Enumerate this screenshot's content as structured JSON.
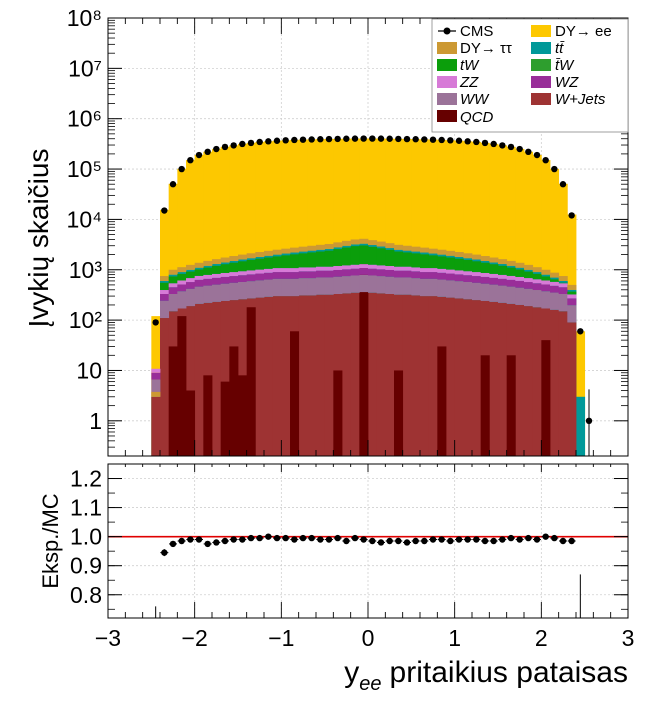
{
  "chart_data": [
    {
      "type": "stacked-histogram",
      "ylabel": "Įvykių skaičius",
      "yscale": "log",
      "ylim": [
        0.2,
        100000000
      ],
      "xlim": [
        -3,
        3
      ],
      "ytick_labels": [
        "1",
        "10",
        "10²",
        "10³",
        "10⁴",
        "10⁵",
        "10⁶",
        "10⁷",
        "10⁸"
      ],
      "legend_position": "top-right",
      "legend": [
        {
          "label": "CMS",
          "color": "#000000",
          "marker": "point"
        },
        {
          "label": "DY→ ee",
          "color": "#fdc800",
          "marker": "box"
        },
        {
          "label": "DY→ ττ",
          "color": "#cc9933",
          "marker": "box"
        },
        {
          "label": "tt̄",
          "color": "#009999",
          "marker": "box"
        },
        {
          "label": "tW",
          "color": "#0b9e0b",
          "marker": "box"
        },
        {
          "label": "t̄W",
          "color": "#2e9e2e",
          "marker": "box"
        },
        {
          "label": "ZZ",
          "color": "#d77ad7",
          "marker": "box"
        },
        {
          "label": "WZ",
          "color": "#992e99",
          "marker": "box"
        },
        {
          "label": "WW",
          "color": "#9b7399",
          "marker": "box"
        },
        {
          "label": "W+Jets",
          "color": "#9e3333",
          "marker": "box"
        },
        {
          "label": "QCD",
          "color": "#660000",
          "marker": "box"
        }
      ],
      "note": "Per-bin stacked MC yields and data points along y_ee (bins of width 0.1 from -2.5 to 2.6)",
      "x": [
        -2.45,
        -2.35,
        -2.25,
        -2.15,
        -2.05,
        -1.95,
        -1.85,
        -1.75,
        -1.65,
        -1.55,
        -1.45,
        -1.35,
        -1.25,
        -1.15,
        -1.05,
        -0.95,
        -0.85,
        -0.75,
        -0.65,
        -0.55,
        -0.45,
        -0.35,
        -0.25,
        -0.15,
        -0.05,
        0.05,
        0.15,
        0.25,
        0.35,
        0.45,
        0.55,
        0.65,
        0.75,
        0.85,
        0.95,
        1.05,
        1.15,
        1.25,
        1.35,
        1.45,
        1.55,
        1.65,
        1.75,
        1.85,
        1.95,
        2.05,
        2.15,
        2.25,
        2.35,
        2.45,
        2.55
      ],
      "series": [
        {
          "name": "CMS",
          "values": [
            90,
            15000,
            50000,
            100000,
            150000,
            190000,
            220000,
            250000,
            275000,
            295000,
            315000,
            330000,
            345000,
            355000,
            365000,
            372000,
            378000,
            383000,
            387000,
            391000,
            394000,
            397000,
            400000,
            402000,
            403000,
            403000,
            402000,
            400000,
            397000,
            394000,
            391000,
            387000,
            383000,
            378000,
            372000,
            365000,
            355000,
            345000,
            330000,
            315000,
            295000,
            275000,
            250000,
            220000,
            190000,
            150000,
            100000,
            50000,
            12000,
            60,
            1
          ]
        },
        {
          "name": "DY→ ee",
          "values": [
            120,
            15500,
            51000,
            101000,
            151000,
            191000,
            221000,
            251000,
            276000,
            296000,
            316000,
            331000,
            346000,
            356000,
            366000,
            373000,
            379000,
            384000,
            388000,
            392000,
            395000,
            398000,
            401000,
            403000,
            404000,
            404000,
            403000,
            401000,
            398000,
            395000,
            392000,
            388000,
            384000,
            379000,
            373000,
            366000,
            356000,
            346000,
            331000,
            316000,
            296000,
            276000,
            251000,
            221000,
            191000,
            151000,
            101000,
            51000,
            12500,
            60,
            0
          ]
        },
        {
          "name": "tt̄",
          "values": [
            3,
            600,
            800,
            900,
            1000,
            1100,
            1200,
            1300,
            1400,
            1500,
            1600,
            1700,
            1800,
            1900,
            2000,
            2100,
            2200,
            2300,
            2400,
            2500,
            2600,
            2800,
            3000,
            3200,
            3300,
            3100,
            2900,
            2700,
            2500,
            2400,
            2300,
            2200,
            2100,
            2000,
            1900,
            1800,
            1700,
            1600,
            1500,
            1400,
            1300,
            1200,
            1100,
            1000,
            900,
            800,
            700,
            600,
            400,
            3,
            0
          ]
        },
        {
          "name": "W+Jets",
          "values": [
            3,
            110,
            150,
            170,
            190,
            210,
            220,
            230,
            240,
            250,
            260,
            270,
            280,
            290,
            300,
            300,
            300,
            310,
            310,
            320,
            320,
            330,
            340,
            350,
            360,
            350,
            340,
            330,
            320,
            320,
            310,
            300,
            300,
            290,
            280,
            270,
            260,
            250,
            240,
            230,
            220,
            210,
            200,
            190,
            180,
            170,
            160,
            150,
            90,
            0,
            0
          ]
        },
        {
          "name": "QCD",
          "values": [
            0,
            0,
            30,
            120,
            4,
            0,
            8,
            0,
            6,
            30,
            8,
            180,
            0,
            0,
            0,
            0,
            60,
            0,
            0,
            0,
            0,
            10,
            0,
            0,
            3000,
            0,
            0,
            0,
            10,
            0,
            0,
            0,
            0,
            30,
            0,
            0,
            0,
            0,
            20,
            0,
            0,
            20,
            0,
            0,
            0,
            40,
            0,
            0,
            0,
            0,
            0
          ]
        }
      ]
    },
    {
      "type": "scatter",
      "ylabel": "Eksp./MC",
      "xlabel": "y_ee pritaikius pataisas",
      "ylim": [
        0.72,
        1.25
      ],
      "xlim": [
        -3,
        3
      ],
      "yticks": [
        0.8,
        0.9,
        1.0,
        1.1,
        1.2
      ],
      "ytick_labels": [
        "0.8",
        "0.9",
        "1.0",
        "1.1",
        "1.2"
      ],
      "xtick_labels": [
        "−3",
        "−2",
        "−1",
        "0",
        "1",
        "2",
        "3"
      ],
      "reference_line": 1.0,
      "x": [
        -2.35,
        -2.25,
        -2.15,
        -2.05,
        -1.95,
        -1.85,
        -1.75,
        -1.65,
        -1.55,
        -1.45,
        -1.35,
        -1.25,
        -1.15,
        -1.05,
        -0.95,
        -0.85,
        -0.75,
        -0.65,
        -0.55,
        -0.45,
        -0.35,
        -0.25,
        -0.15,
        -0.05,
        0.05,
        0.15,
        0.25,
        0.35,
        0.45,
        0.55,
        0.65,
        0.75,
        0.85,
        0.95,
        1.05,
        1.15,
        1.25,
        1.35,
        1.45,
        1.55,
        1.65,
        1.75,
        1.85,
        1.95,
        2.05,
        2.15,
        2.25,
        2.35
      ],
      "y": [
        0.945,
        0.975,
        0.985,
        0.99,
        0.99,
        0.975,
        0.98,
        0.985,
        0.99,
        0.99,
        0.995,
        0.995,
        1.0,
        0.995,
        0.995,
        0.99,
        0.995,
        0.995,
        0.99,
        0.99,
        0.995,
        0.985,
        0.995,
        0.99,
        0.985,
        0.98,
        0.985,
        0.985,
        0.98,
        0.985,
        0.985,
        0.99,
        0.99,
        0.985,
        0.99,
        0.99,
        0.99,
        0.985,
        0.985,
        0.99,
        0.995,
        0.99,
        0.995,
        0.99,
        1.0,
        0.995,
        0.985,
        0.985
      ]
    }
  ]
}
